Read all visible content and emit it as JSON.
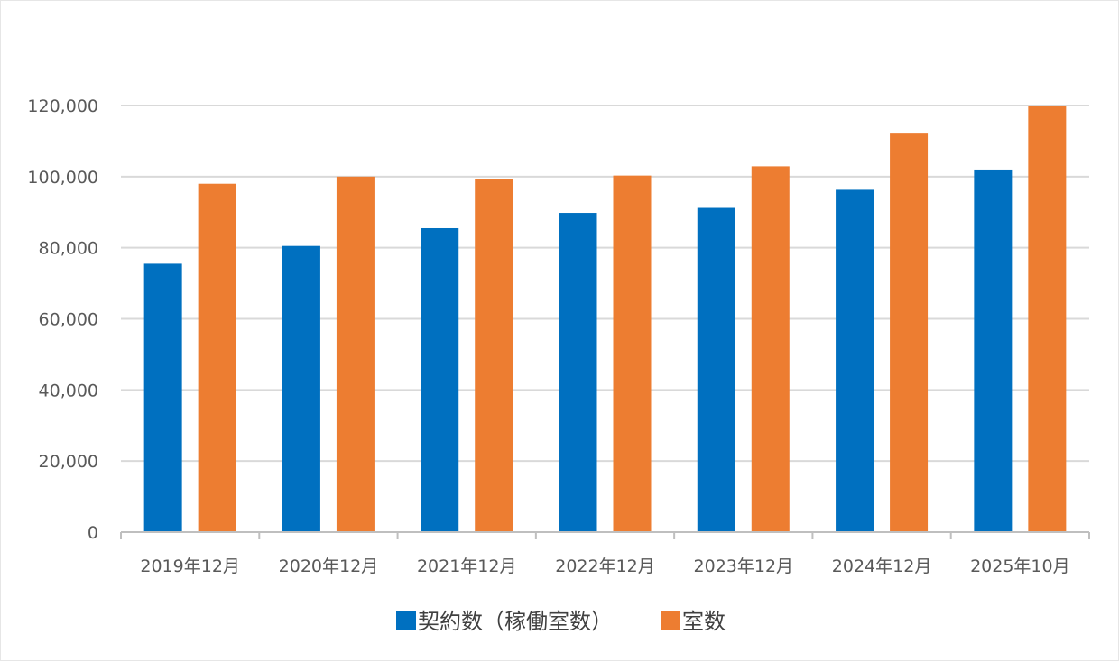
{
  "chart_data": {
    "type": "bar",
    "categories": [
      "2019年12月",
      "2020年12月",
      "2021年12月",
      "2022年12月",
      "2023年12月",
      "2024年12月",
      "2025年10月"
    ],
    "series": [
      {
        "name": "契約数（稼働室数）",
        "color": "#0070c0",
        "values": [
          75500,
          80500,
          85500,
          89800,
          91200,
          96300,
          102000
        ]
      },
      {
        "name": "室数",
        "color": "#ed7d31",
        "values": [
          98000,
          100000,
          99200,
          100300,
          102900,
          112100,
          120000
        ]
      }
    ],
    "y_ticks": [
      "0",
      "20,000",
      "40,000",
      "60,000",
      "80,000",
      "100,000",
      "120,000"
    ],
    "ylim": [
      0,
      120000
    ],
    "grid": true,
    "legend": "bottom-center"
  }
}
